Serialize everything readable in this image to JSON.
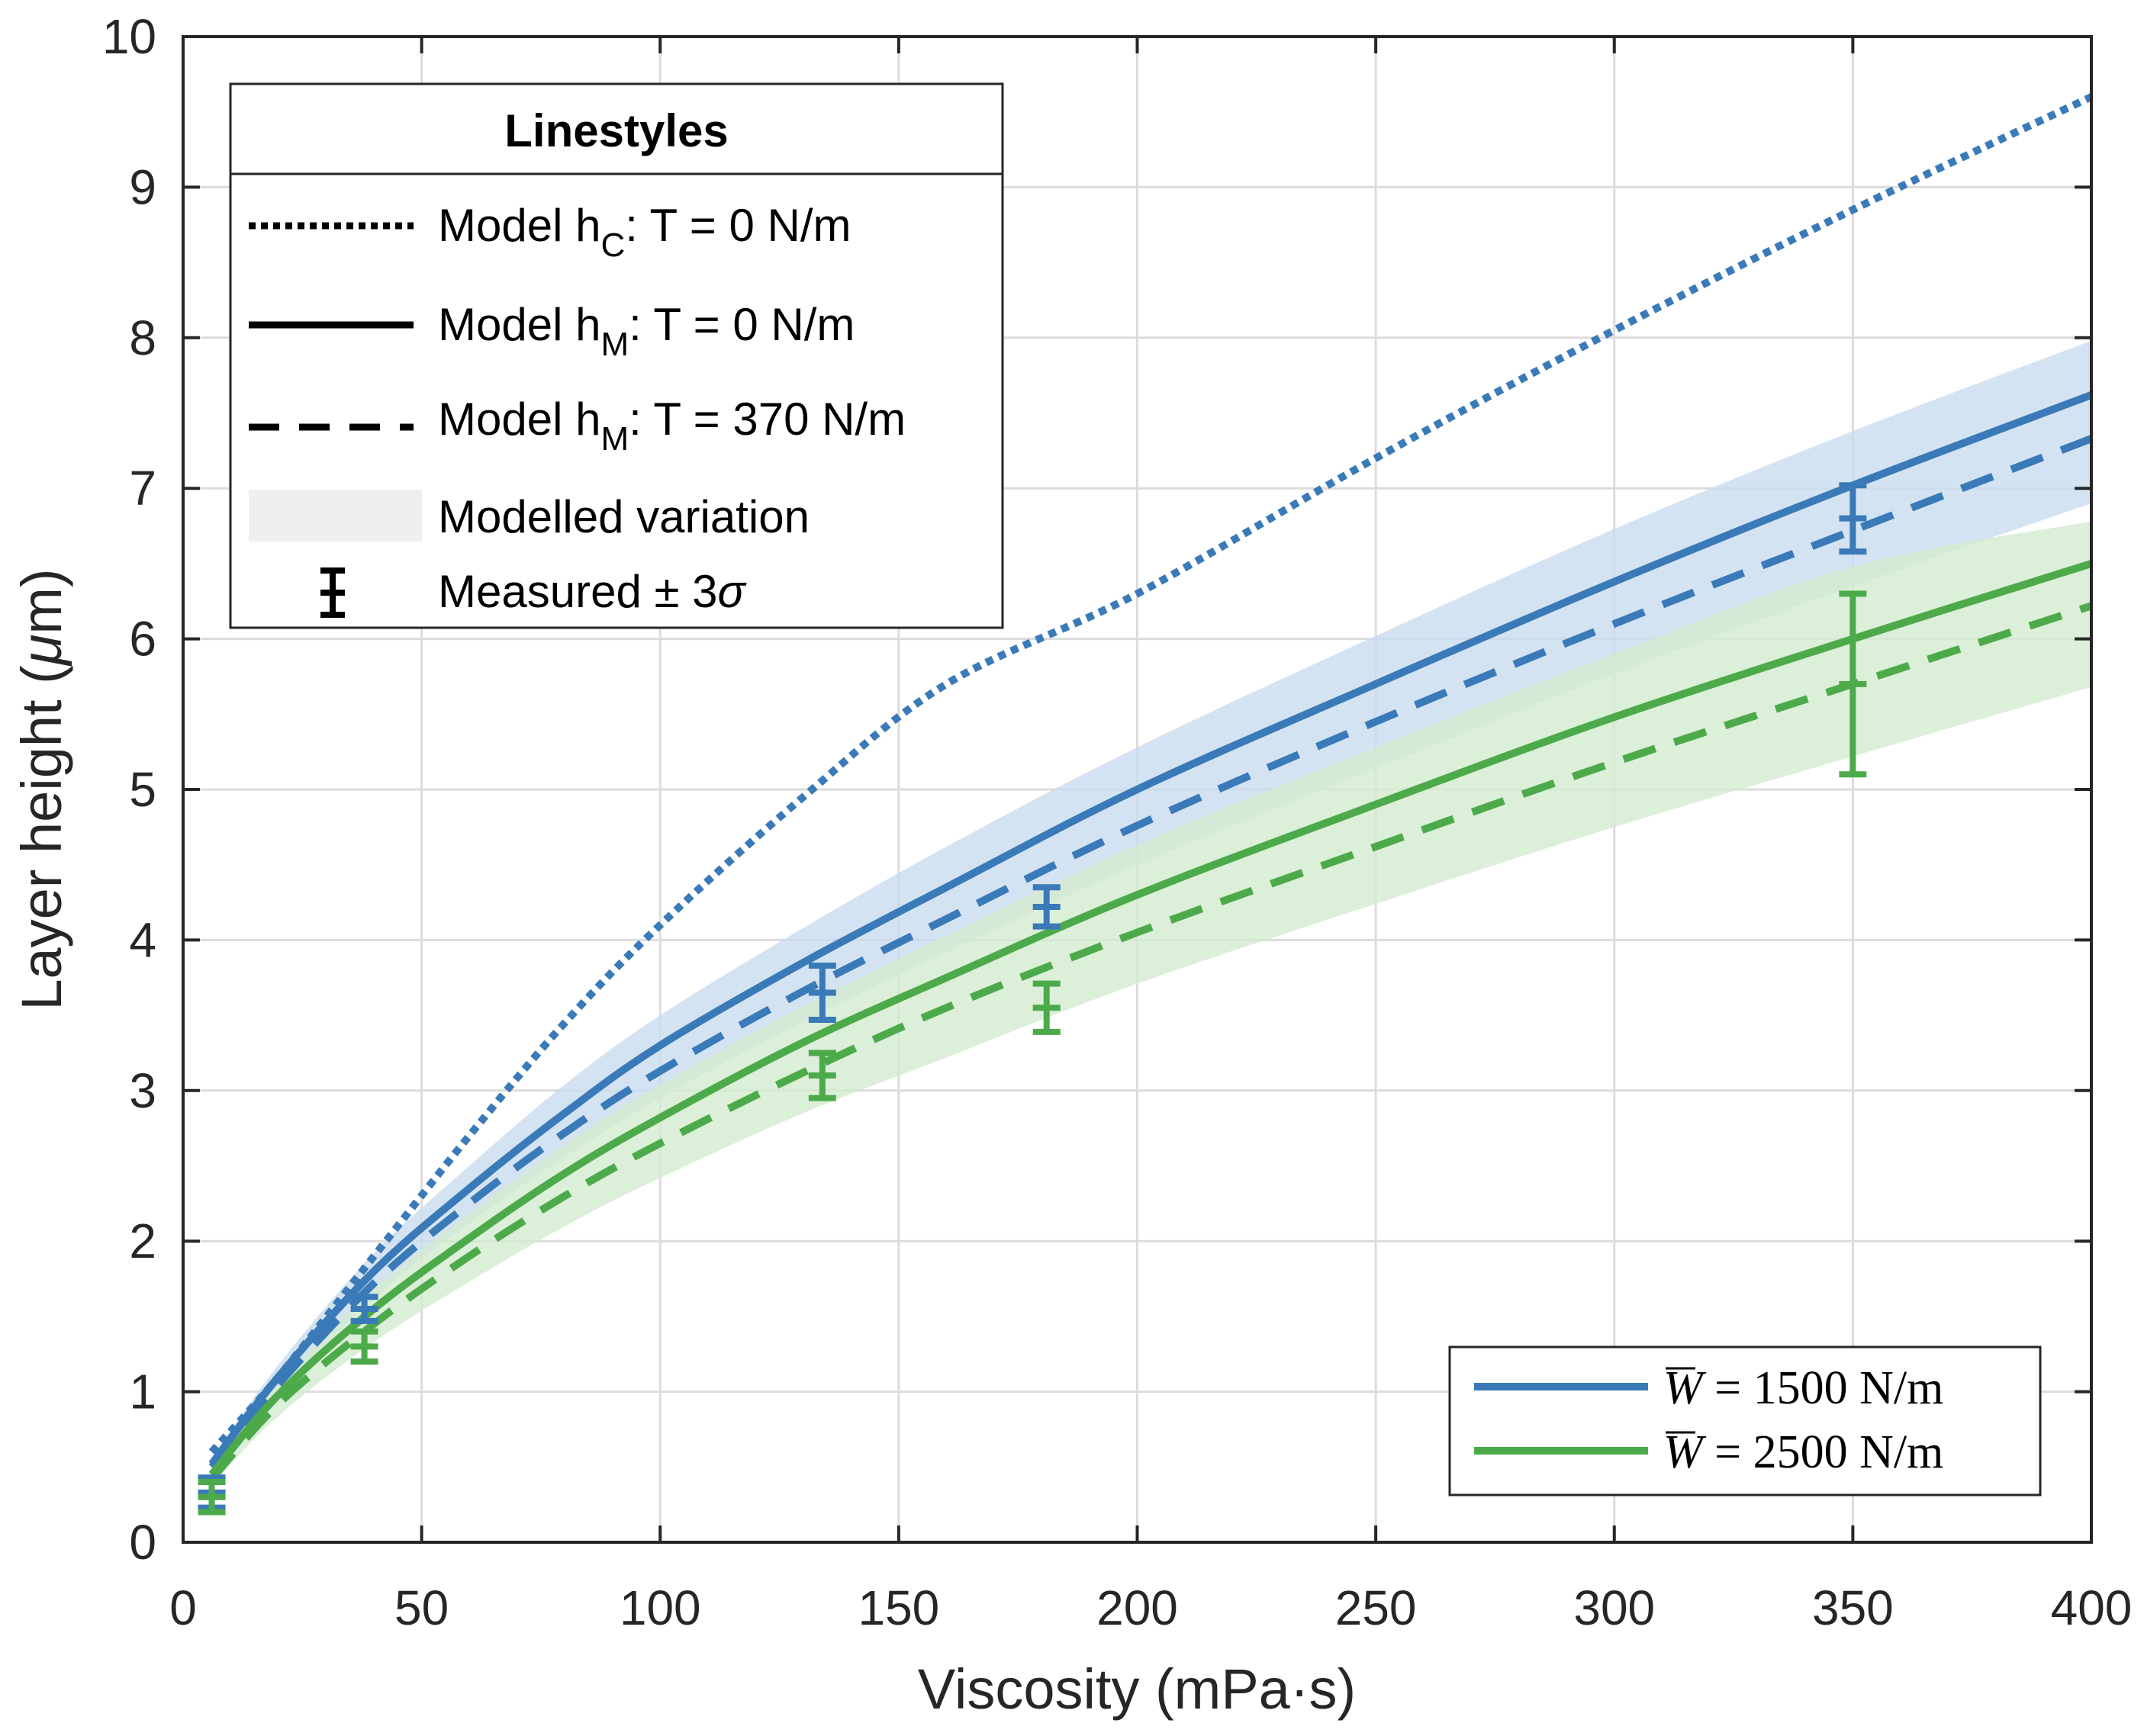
{
  "chart_data": {
    "type": "line",
    "xlabel": "Viscosity (mPa·s)",
    "ylabel_text": "Layer height (",
    "ylabel_unit_symbol": "μ",
    "ylabel_unit_rest": "m)",
    "xlim": [
      0,
      400
    ],
    "ylim": [
      0,
      10
    ],
    "xticks": [
      0,
      50,
      100,
      150,
      200,
      250,
      300,
      350,
      400
    ],
    "yticks": [
      0,
      1,
      2,
      3,
      4,
      5,
      6,
      7,
      8,
      9,
      10
    ],
    "grid": true,
    "colors": {
      "blue": "#3a7ab8",
      "green": "#4daa4a",
      "blue_band": "#c9dced",
      "green_band": "#d3ebcf"
    },
    "series": [
      {
        "name": "Model hC: T = 0 N/m (W̄ = 1500 N/m)",
        "group": "blue",
        "style": "dotted",
        "x": [
          6,
          20,
          40,
          60,
          80,
          100,
          130,
          160,
          200,
          250,
          300,
          350,
          400
        ],
        "y": [
          0.6,
          1.1,
          1.9,
          2.7,
          3.45,
          4.1,
          4.95,
          5.7,
          6.3,
          7.2,
          8.05,
          8.85,
          9.6
        ]
      },
      {
        "name": "Model hM: T = 0 N/m (W̄ = 1500 N/m)",
        "group": "blue",
        "style": "solid",
        "x": [
          6,
          20,
          40,
          60,
          80,
          100,
          130,
          160,
          200,
          250,
          300,
          350,
          400
        ],
        "y": [
          0.52,
          1.1,
          1.8,
          2.35,
          2.85,
          3.3,
          3.85,
          4.35,
          5.0,
          5.7,
          6.38,
          7.02,
          7.62
        ]
      },
      {
        "name": "Model hM: T = 370 N/m (W̄ = 1500 N/m)",
        "group": "blue",
        "style": "dashed",
        "x": [
          6,
          20,
          40,
          60,
          80,
          100,
          130,
          160,
          200,
          250,
          300,
          350,
          400
        ],
        "y": [
          0.5,
          1.05,
          1.72,
          2.25,
          2.72,
          3.13,
          3.66,
          4.14,
          4.76,
          5.45,
          6.1,
          6.72,
          7.33
        ]
      },
      {
        "name": "Model hM: T = 0 N/m (W̄ = 2500 N/m)",
        "group": "green",
        "style": "solid",
        "x": [
          6,
          20,
          40,
          60,
          80,
          100,
          130,
          160,
          200,
          250,
          300,
          350,
          400
        ],
        "y": [
          0.45,
          0.98,
          1.55,
          2.02,
          2.45,
          2.82,
          3.32,
          3.75,
          4.3,
          4.9,
          5.48,
          6.0,
          6.5
        ]
      },
      {
        "name": "Model hM: T = 370 N/m (W̄ = 2500 N/m)",
        "group": "green",
        "style": "dashed",
        "x": [
          6,
          20,
          40,
          60,
          80,
          100,
          130,
          160,
          200,
          250,
          300,
          350,
          400
        ],
        "y": [
          0.42,
          0.92,
          1.45,
          1.9,
          2.3,
          2.65,
          3.12,
          3.55,
          4.05,
          4.62,
          5.18,
          5.7,
          6.22
        ]
      }
    ],
    "bands": [
      {
        "name": "Modelled variation (W̄ = 1500 N/m)",
        "group": "blue",
        "x": [
          6,
          20,
          40,
          60,
          80,
          100,
          130,
          160,
          200,
          250,
          300,
          350,
          400
        ],
        "upper": [
          0.56,
          1.18,
          1.92,
          2.5,
          3.04,
          3.5,
          4.08,
          4.62,
          5.28,
          6.02,
          6.73,
          7.38,
          7.98
        ],
        "lower": [
          0.47,
          1.0,
          1.62,
          2.12,
          2.56,
          2.95,
          3.46,
          3.92,
          4.5,
          5.14,
          5.77,
          6.35,
          6.9
        ]
      },
      {
        "name": "Modelled variation (W̄ = 2500 N/m)",
        "group": "green",
        "x": [
          6,
          20,
          40,
          60,
          80,
          100,
          130,
          160,
          200,
          250,
          300,
          350,
          400
        ],
        "upper": [
          0.5,
          1.05,
          1.68,
          2.18,
          2.64,
          3.04,
          3.56,
          4.03,
          4.63,
          5.28,
          5.9,
          6.48,
          6.78
        ],
        "lower": [
          0.38,
          0.84,
          1.33,
          1.73,
          2.1,
          2.42,
          2.85,
          3.22,
          3.71,
          4.24,
          4.75,
          5.22,
          5.68
        ]
      }
    ],
    "measured": [
      {
        "group": "blue",
        "x": 6,
        "y": 0.33,
        "err": 0.1
      },
      {
        "group": "green",
        "x": 6,
        "y": 0.3,
        "err": 0.1
      },
      {
        "group": "blue",
        "x": 38,
        "y": 1.55,
        "err": 0.08
      },
      {
        "group": "green",
        "x": 38,
        "y": 1.3,
        "err": 0.1
      },
      {
        "group": "blue",
        "x": 134,
        "y": 3.65,
        "err": 0.18
      },
      {
        "group": "green",
        "x": 134,
        "y": 3.1,
        "err": 0.15
      },
      {
        "group": "blue",
        "x": 181,
        "y": 4.22,
        "err": 0.13
      },
      {
        "group": "green",
        "x": 181,
        "y": 3.55,
        "err": 0.16
      },
      {
        "group": "blue",
        "x": 350,
        "y": 6.8,
        "err": 0.22
      },
      {
        "group": "green",
        "x": 350,
        "y": 5.7,
        "err": 0.6
      }
    ],
    "legend_linestyles": {
      "title": "Linestyles",
      "entries": [
        {
          "style": "dotted",
          "pre": "Model h",
          "sub": "C",
          "post": ": T = 0 N/m"
        },
        {
          "style": "solid",
          "pre": "Model h",
          "sub": "M",
          "post": ": T = 0 N/m"
        },
        {
          "style": "dashed",
          "pre": "Model h",
          "sub": "M",
          "post": ": T = 370 N/m"
        },
        {
          "style": "band",
          "pre": "Modelled variation",
          "sub": "",
          "post": ""
        },
        {
          "style": "errorbar",
          "pre": "Measured ± 3",
          "sub": "",
          "post": "σ"
        }
      ]
    },
    "legend_colors": {
      "entries": [
        {
          "group": "blue",
          "symbol": "W",
          "equals": " = ",
          "value": "1500",
          "unit": " N/m"
        },
        {
          "group": "green",
          "symbol": "W",
          "equals": " = ",
          "value": "2500",
          "unit": " N/m"
        }
      ]
    }
  }
}
